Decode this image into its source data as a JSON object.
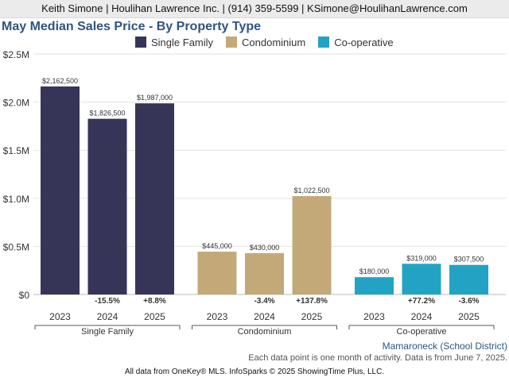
{
  "header": {
    "contact": "Keith Simone | Houlihan Lawrence Inc. | (914) 359-5599 | KSimone@HoulihanLawrence.com"
  },
  "chart_data": {
    "type": "bar",
    "title": "May Median Sales Price - By Property Type",
    "yticks": [
      "$0",
      "$0.5M",
      "$1.0M",
      "$1.5M",
      "$2.0M",
      "$2.5M"
    ],
    "ylim": [
      0,
      2500000
    ],
    "grid": true,
    "legend_position": "top",
    "groups": [
      {
        "name": "Single Family",
        "color": "#373557",
        "categories": [
          "2023",
          "2024",
          "2025"
        ],
        "values": [
          2162500,
          1826500,
          1987000
        ],
        "value_labels": [
          "$2,162,500",
          "$1,826,500",
          "$1,987,000"
        ],
        "changes": [
          "",
          "-15.5%",
          "+8.8%"
        ]
      },
      {
        "name": "Condominium",
        "color": "#c4a978",
        "categories": [
          "2023",
          "2024",
          "2025"
        ],
        "values": [
          445000,
          430000,
          1022500
        ],
        "value_labels": [
          "$445,000",
          "$430,000",
          "$1,022,500"
        ],
        "changes": [
          "",
          "-3.4%",
          "+137.8%"
        ]
      },
      {
        "name": "Co-operative",
        "color": "#22a3c4",
        "categories": [
          "2023",
          "2024",
          "2025"
        ],
        "values": [
          180000,
          319000,
          307500
        ],
        "value_labels": [
          "$180,000",
          "$319,000",
          "$307,500"
        ],
        "changes": [
          "",
          "+77.2%",
          "-3.6%"
        ]
      }
    ]
  },
  "subtitle": "Mamaroneck (School District)",
  "note": "Each data point is one month of activity. Data is from June 7, 2025.",
  "footer": "All data from OneKey® MLS. InfoSparks © 2025 ShowingTime Plus, LLC."
}
